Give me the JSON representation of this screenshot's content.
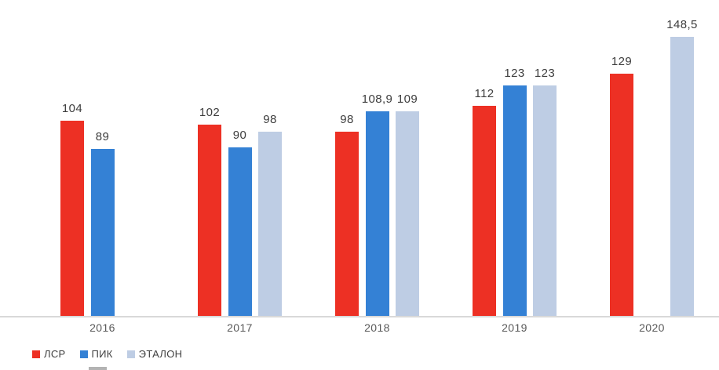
{
  "chart_data": {
    "type": "bar",
    "title": "",
    "xlabel": "",
    "ylabel": "",
    "categories": [
      "2016",
      "2017",
      "2018",
      "2019",
      "2020"
    ],
    "series": [
      {
        "name": "ЛСР",
        "color": "#ED3024",
        "values": [
          104,
          102,
          98,
          112,
          129
        ],
        "labels": [
          "104",
          "102",
          "98",
          "112",
          "129"
        ]
      },
      {
        "name": "ПИК",
        "color": "#3481D5",
        "values": [
          89,
          90,
          108.9,
          123,
          null
        ],
        "labels": [
          "89",
          "90",
          "108,9",
          "123",
          ""
        ]
      },
      {
        "name": "ЭТАЛОН",
        "color": "#BECDE4",
        "values": [
          null,
          98,
          109,
          123,
          148.5
        ],
        "labels": [
          "",
          "98",
          "109",
          "123",
          "148,5"
        ]
      }
    ],
    "ylim": [
      0,
      168
    ],
    "grid": false,
    "value_labels": true,
    "decimal_separator": ",",
    "legend_position": "bottom-left"
  },
  "colors": {
    "background": "#FFFFFF",
    "axis_line": "#D9D9D9",
    "value_label_text": "#3D3D3D",
    "axis_label_text": "#595959",
    "legend_text": "#404040",
    "clipped_element": "#A6A6A6"
  }
}
